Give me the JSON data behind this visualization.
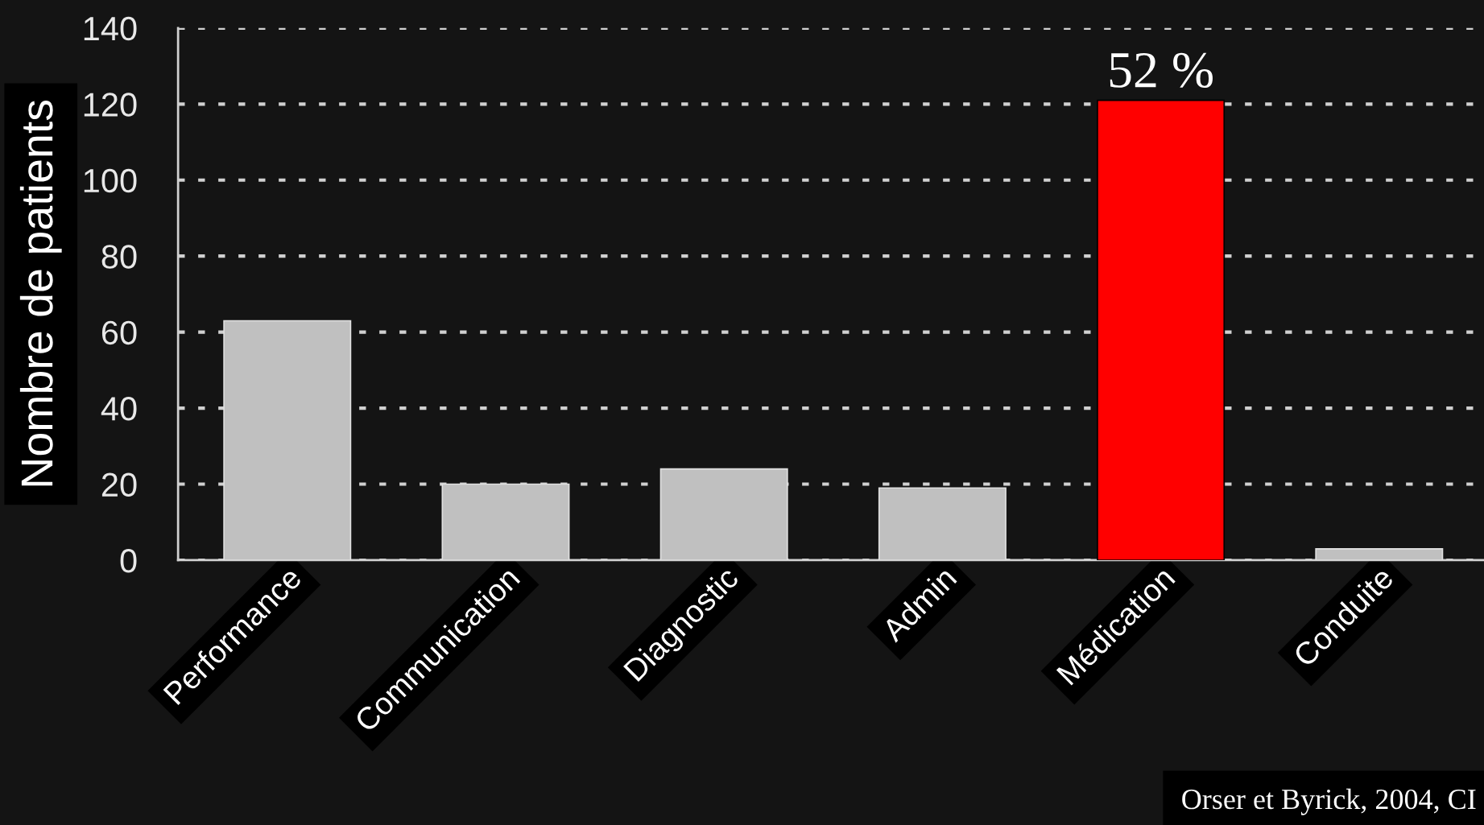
{
  "chart_data": {
    "type": "bar",
    "ylabel": "Nombre de patients",
    "categories": [
      "Performance",
      "Communication",
      "Diagnostic",
      "Admin",
      "Médication",
      "Conduite"
    ],
    "values": [
      63,
      20,
      24,
      19,
      121,
      3
    ],
    "colors": [
      "#c0c0c0",
      "#c0c0c0",
      "#c0c0c0",
      "#c0c0c0",
      "#ff0000",
      "#c0c0c0"
    ],
    "ylim": [
      0,
      140
    ],
    "yticks": [
      0,
      20,
      40,
      60,
      80,
      100,
      120,
      140
    ],
    "grid": "y",
    "annotations": [
      {
        "text": "52 %",
        "x": "Médication",
        "y": 121
      },
      "Orser et Byrick, 2004, CI"
    ]
  }
}
